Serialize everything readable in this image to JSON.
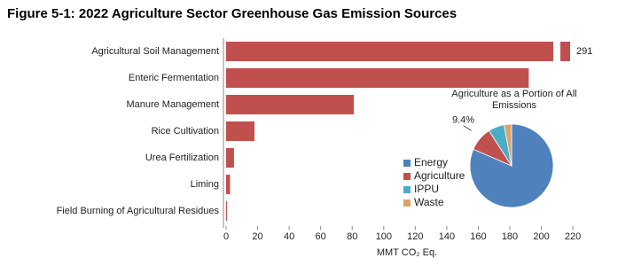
{
  "page_title": "Figure 5-1:  2022 Agriculture Sector Greenhouse Gas Emission Sources",
  "chart_data": [
    {
      "type": "bar",
      "orientation": "horizontal",
      "categories": [
        "Agricultural Soil Management",
        "Enteric Fermentation",
        "Manure Management",
        "Rice Cultivation",
        "Urea Fertilization",
        "Liming",
        "Field Burning of Agricultural Residues"
      ],
      "values": [
        291,
        192,
        81,
        18,
        5,
        2.5,
        0.6
      ],
      "color": "#c0504d",
      "xlim": [
        0,
        225
      ],
      "xticks": [
        0,
        20,
        40,
        60,
        80,
        100,
        120,
        140,
        160,
        180,
        200,
        220
      ],
      "x_label": "MMT CO₂ Eq.",
      "axis_break": true
    },
    {
      "type": "pie",
      "title": "Agriculture as a Portion of All Emissions",
      "categories": [
        "Energy",
        "Agriculture",
        "IPPU",
        "Waste"
      ],
      "values": [
        81.5,
        9.4,
        6.2,
        2.9
      ],
      "value_labels": [
        null,
        "9.4%",
        null,
        null
      ],
      "colors": [
        "#4f81bd",
        "#c0504d",
        "#4bacc6",
        "#d9a46c"
      ],
      "legend": "left"
    }
  ]
}
